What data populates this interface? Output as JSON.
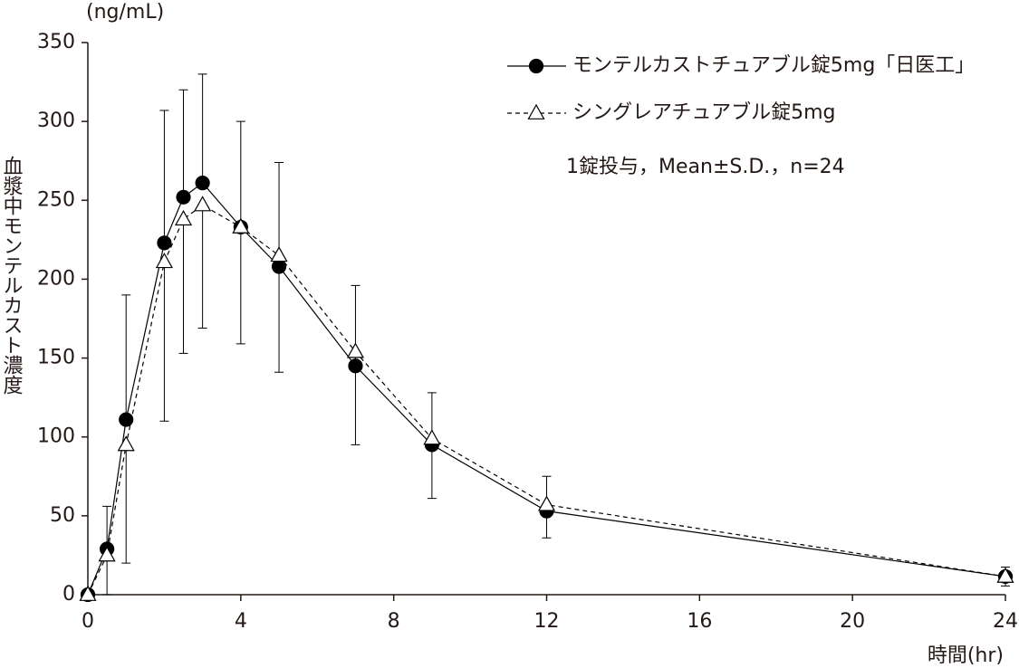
{
  "chart_data": {
    "type": "line",
    "y_unit": "(ng/mL)",
    "ylabel": "血漿中モンテルカスト濃度",
    "xlabel": "時間(hr)",
    "annotation": "1錠投与，Mean±S.D.，n=24",
    "x": [
      0,
      0.5,
      1,
      2,
      2.5,
      3,
      4,
      5,
      7,
      9,
      12,
      24
    ],
    "series": [
      {
        "name": "モンテルカストチュアブル錠5mg「日医工」",
        "color": "#000000",
        "marker": "circle",
        "marker_fill": "#000000",
        "line_style": "solid",
        "error_direction": "up",
        "values": [
          0,
          29,
          111,
          223,
          252,
          261,
          233,
          208,
          145,
          95,
          53,
          11.5
        ],
        "errors": [
          0,
          27,
          79,
          84,
          68,
          69,
          67,
          66,
          51,
          33,
          22,
          6
        ]
      },
      {
        "name": "シングレアチュアブル錠5mg",
        "color": "#000000",
        "marker": "triangle",
        "marker_fill": "#ffffff",
        "line_style": "dashed",
        "error_direction": "down",
        "values": [
          0,
          25,
          95,
          211,
          238,
          247,
          233,
          215,
          154,
          99,
          57,
          11.5
        ],
        "errors": [
          0,
          25,
          75,
          101,
          85,
          78,
          74,
          74,
          59,
          38,
          21,
          6
        ]
      }
    ],
    "xlim": [
      0,
      24
    ],
    "xticks": [
      0,
      4,
      8,
      12,
      16,
      20,
      24
    ],
    "ylim": [
      0,
      350
    ],
    "yticks": [
      0,
      50,
      100,
      150,
      200,
      250,
      300,
      350
    ],
    "grid": false
  }
}
